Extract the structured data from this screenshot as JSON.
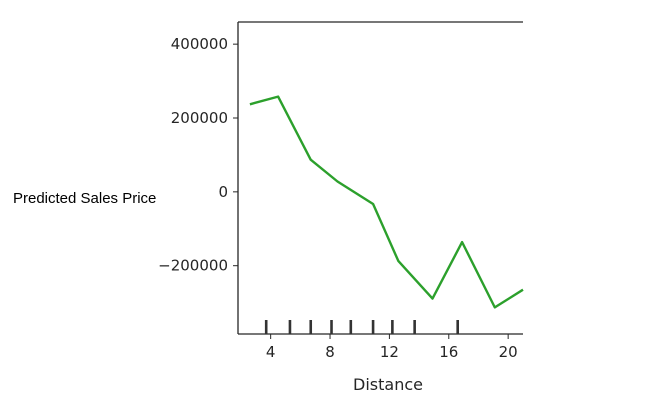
{
  "page_label": "Predicted Sales Price",
  "chart_data": {
    "type": "line",
    "title": "",
    "xlabel": "Distance",
    "ylabel": "",
    "xlim": [
      1.8,
      21
    ],
    "ylim": [
      -385000,
      460000
    ],
    "x_ticks": [
      4,
      8,
      12,
      16,
      20
    ],
    "y_ticks": [
      -200000,
      0,
      200000,
      400000
    ],
    "grid": false,
    "series_color": "#2ca02c",
    "rug_color": "#333333",
    "series": [
      {
        "x": [
          2.6,
          4.5,
          6.7,
          8.5,
          10.9,
          12.6,
          14.9,
          16.9,
          19.1,
          21.0
        ],
        "values": [
          237000,
          258000,
          87000,
          28000,
          -33000,
          -187000,
          -289000,
          -136000,
          -313000,
          -265000
        ]
      }
    ],
    "rug_x": [
      3.7,
      5.3,
      6.7,
      8.1,
      9.4,
      10.9,
      12.2,
      13.7,
      16.6
    ]
  }
}
